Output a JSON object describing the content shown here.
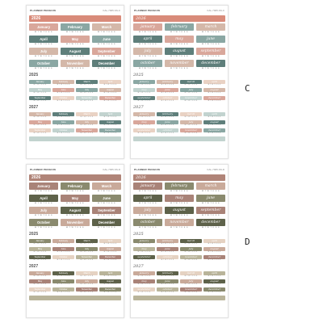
{
  "brand": "PLANNER PENGUIN",
  "weekday_initials": "M T W T F S S",
  "sheets": [
    {
      "code": "KAL-7005-SS-C",
      "script": false,
      "years": [
        "2026",
        "2025",
        "2027"
      ],
      "palette": [
        "#d9a79b",
        "#8aa7a3",
        "#d4b8a9",
        "#5f7f7b",
        "#e9d2c4",
        "#c2d3cf"
      ],
      "year_color": "#d98b7a"
    },
    {
      "code": "KAL-7005-SS-C",
      "script": true,
      "years": [
        "2026",
        "2025",
        "2027"
      ],
      "palette": [
        "#d9a79b",
        "#8aa7a3",
        "#d4b8a9",
        "#5f7f7b",
        "#e9d2c4",
        "#c2d3cf"
      ],
      "year_color": "#d98b7a"
    },
    {
      "code": "KAL-7005-SS-D",
      "script": false,
      "years": [
        "2026",
        "2025",
        "2027"
      ],
      "palette": [
        "#a98378",
        "#8a8a6e",
        "#c9aa9a",
        "#5e624a",
        "#e5d2c2",
        "#b9b49a"
      ],
      "year_color": "#b08478"
    },
    {
      "code": "KAL-7005-SS-D",
      "script": true,
      "years": [
        "2026",
        "2025",
        "2027"
      ],
      "palette": [
        "#a98378",
        "#8a8a6e",
        "#c9aa9a",
        "#5e624a",
        "#e5d2c2",
        "#b9b49a"
      ],
      "year_color": "#b08478"
    }
  ],
  "months_print": [
    "January",
    "February",
    "March",
    "April",
    "May",
    "June",
    "July",
    "August",
    "September",
    "October",
    "November",
    "December"
  ],
  "months_script": [
    "january",
    "february",
    "march",
    "april",
    "may",
    "june",
    "july",
    "august",
    "september",
    "october",
    "november",
    "december"
  ],
  "letters": {
    "c": "C",
    "d": "D"
  }
}
